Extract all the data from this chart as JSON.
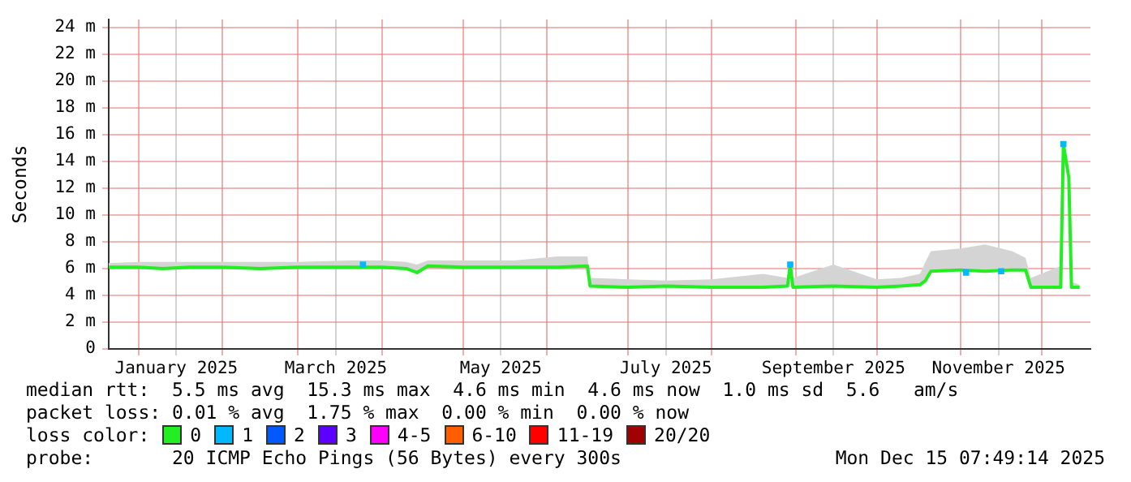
{
  "chart_data": {
    "type": "line",
    "ylabel": "Seconds",
    "legend_title": "loss color:",
    "legend": "bottom",
    "grid": true,
    "xlim": [
      "2024-12-21",
      "2025-12-19"
    ],
    "xticks": [
      {
        "value": "2025-01-01",
        "label": null
      },
      {
        "value": "2025-01-15",
        "label": "January 2025"
      },
      {
        "value": "2025-02-01",
        "label": null
      },
      {
        "value": "2025-03-01",
        "label": null
      },
      {
        "value": "2025-03-15",
        "label": "March 2025"
      },
      {
        "value": "2025-04-01",
        "label": null
      },
      {
        "value": "2025-05-01",
        "label": null
      },
      {
        "value": "2025-05-15",
        "label": "May 2025"
      },
      {
        "value": "2025-06-01",
        "label": null
      },
      {
        "value": "2025-07-01",
        "label": null
      },
      {
        "value": "2025-07-15",
        "label": "July 2025"
      },
      {
        "value": "2025-08-01",
        "label": null
      },
      {
        "value": "2025-09-01",
        "label": null
      },
      {
        "value": "2025-09-15",
        "label": "September 2025"
      },
      {
        "value": "2025-10-01",
        "label": null
      },
      {
        "value": "2025-11-01",
        "label": null
      },
      {
        "value": "2025-11-15",
        "label": "November 2025"
      },
      {
        "value": "2025-12-01",
        "label": null
      }
    ],
    "ylim": [
      0,
      24.6
    ],
    "yticks": [
      {
        "value": 0,
        "label": "0"
      },
      {
        "value": 2,
        "label": "2 m"
      },
      {
        "value": 4,
        "label": "4 m"
      },
      {
        "value": 6,
        "label": "6 m"
      },
      {
        "value": 8,
        "label": "8 m"
      },
      {
        "value": 10,
        "label": "10 m"
      },
      {
        "value": 12,
        "label": "12 m"
      },
      {
        "value": 14,
        "label": "14 m"
      },
      {
        "value": 16,
        "label": "16 m"
      },
      {
        "value": 18,
        "label": "18 m"
      },
      {
        "value": 20,
        "label": "20 m"
      },
      {
        "value": 22,
        "label": "22 m"
      },
      {
        "value": 24,
        "label": "24 m"
      }
    ],
    "series": [
      {
        "name": "0",
        "color": "#22ee22",
        "x": [
          "2024-12-21",
          "2025-01-01",
          "2025-01-10",
          "2025-01-20",
          "2025-02-01",
          "2025-02-15",
          "2025-03-01",
          "2025-03-20",
          "2025-04-01",
          "2025-04-10",
          "2025-04-14",
          "2025-04-18",
          "2025-05-01",
          "2025-05-20",
          "2025-06-05",
          "2025-06-16",
          "2025-06-17",
          "2025-07-01",
          "2025-07-15",
          "2025-08-01",
          "2025-08-20",
          "2025-08-29",
          "2025-08-30",
          "2025-08-31",
          "2025-09-15",
          "2025-10-01",
          "2025-10-10",
          "2025-10-17",
          "2025-10-19",
          "2025-10-21",
          "2025-11-01",
          "2025-11-10",
          "2025-11-20",
          "2025-11-25",
          "2025-11-27",
          "2025-12-08",
          "2025-12-09",
          "2025-12-11",
          "2025-12-12",
          "2025-12-15"
        ],
        "values": [
          6.1,
          6.1,
          6.0,
          6.1,
          6.1,
          6.0,
          6.1,
          6.1,
          6.1,
          6.0,
          5.7,
          6.2,
          6.1,
          6.1,
          6.1,
          6.2,
          4.7,
          4.6,
          4.7,
          4.6,
          4.6,
          4.7,
          6.3,
          4.6,
          4.7,
          4.6,
          4.7,
          4.8,
          5.1,
          5.8,
          5.9,
          5.8,
          5.9,
          5.9,
          4.6,
          4.6,
          15.3,
          12.8,
          4.6,
          4.6
        ],
        "lower": [
          6.0,
          6.0,
          5.9,
          6.0,
          6.0,
          5.9,
          6.0,
          6.0,
          6.0,
          5.9,
          5.6,
          6.1,
          6.0,
          6.0,
          6.0,
          6.1,
          4.6,
          4.5,
          4.6,
          4.5,
          4.5,
          4.6,
          6.2,
          4.5,
          4.6,
          4.5,
          4.6,
          4.7,
          5.0,
          5.7,
          5.8,
          5.7,
          5.8,
          5.8,
          4.5,
          4.5,
          15.2,
          12.7,
          4.5,
          4.5
        ],
        "upper": [
          6.4,
          6.5,
          6.5,
          6.5,
          6.5,
          6.5,
          6.5,
          6.6,
          6.6,
          6.5,
          6.3,
          6.6,
          6.6,
          6.6,
          6.9,
          6.9,
          5.3,
          5.2,
          5.1,
          5.2,
          5.6,
          5.3,
          6.5,
          5.3,
          6.3,
          5.2,
          5.3,
          5.6,
          6.5,
          7.3,
          7.5,
          7.8,
          7.3,
          6.8,
          5.3,
          6.2,
          15.4,
          13.0,
          5.0,
          4.8
        ]
      },
      {
        "name": "1",
        "color": "#00b8ff",
        "type": "scatter",
        "x": [
          "2025-03-25",
          "2025-08-30",
          "2025-11-03",
          "2025-11-16",
          "2025-12-09"
        ],
        "values": [
          6.3,
          6.3,
          5.7,
          5.8,
          15.3
        ]
      },
      {
        "name": "2",
        "color": "#0059ff"
      },
      {
        "name": "3",
        "color": "#5e00ff"
      },
      {
        "name": "4-5",
        "color": "#ff00ff"
      },
      {
        "name": "6-10",
        "color": "#ff5e00"
      },
      {
        "name": "11-19",
        "color": "#ff0000"
      },
      {
        "name": "20/20",
        "color": "#a10000"
      }
    ],
    "annotations": [
      "median rtt:  5.5 ms avg  15.3 ms max  4.6 ms min  4.6 ms now  1.0 ms sd  5.6   am/s",
      "packet loss: 0.01 % avg  1.75 % max  0.00 % min  0.00 % now",
      "probe:       20 ICMP Echo Pings (56 Bytes) every 300s",
      "Mon Dec 15 07:49:14 2025"
    ]
  }
}
